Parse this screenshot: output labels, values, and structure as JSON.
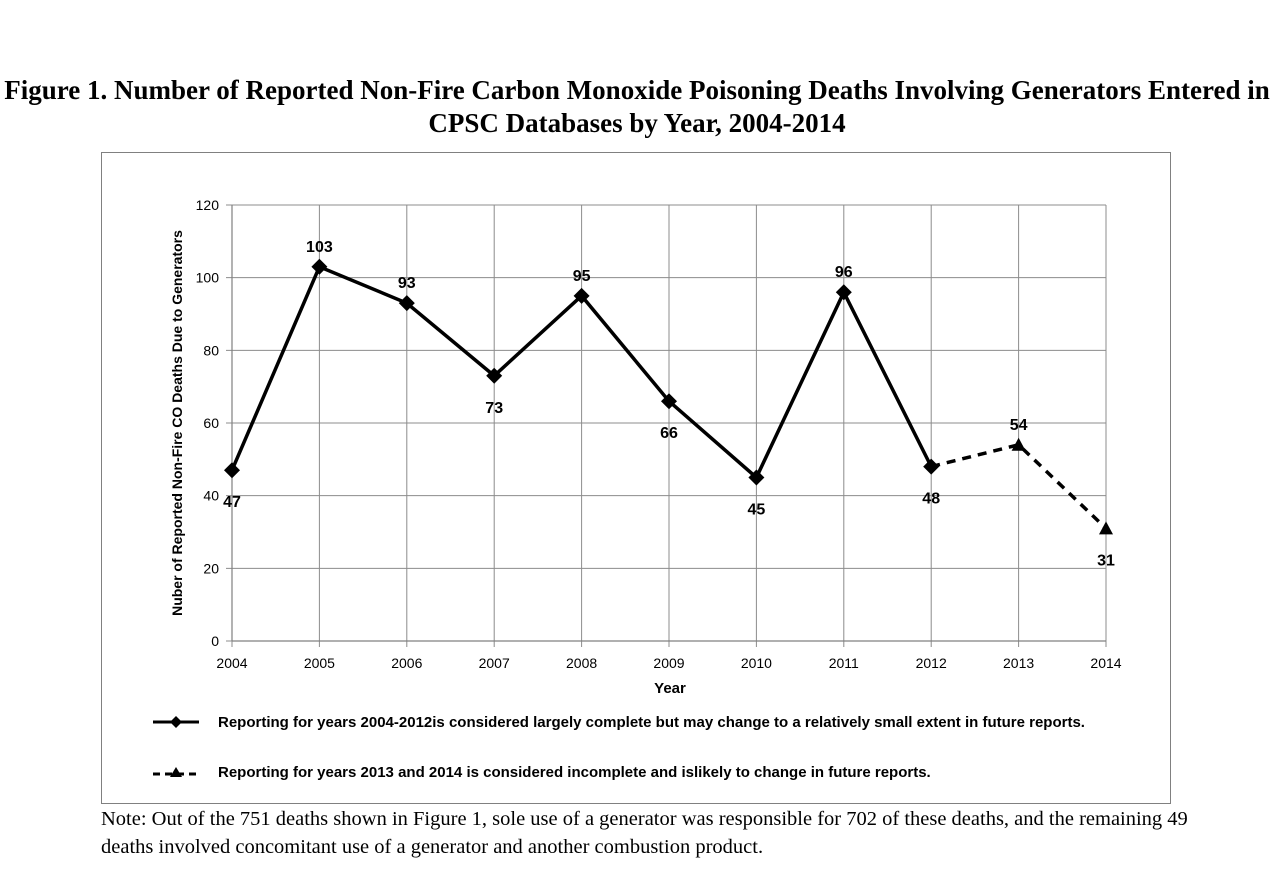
{
  "chart_data": {
    "type": "line",
    "title": "Figure 1.  Number of Reported Non-Fire Carbon Monoxide Poisoning Deaths Involving Generators Entered in CPSC Databases by Year, 2004-2014",
    "xlabel": "Year",
    "ylabel": "Nuber of Reported Non-Fire CO Deaths Due to Generators",
    "x": [
      "2004",
      "2005",
      "2006",
      "2007",
      "2008",
      "2009",
      "2010",
      "2011",
      "2012",
      "2013",
      "2014"
    ],
    "ylim": [
      0,
      120
    ],
    "yticks": [
      "0",
      "20",
      "40",
      "60",
      "80",
      "100",
      "120"
    ],
    "grid": true,
    "legend_position": "bottom",
    "series": [
      {
        "name": "Reporting for years 2004-2012is considered largely complete but may change to a relatively small extent in future reports.",
        "style": "solid",
        "marker": "diamond",
        "color": "#000000",
        "x": [
          "2004",
          "2005",
          "2006",
          "2007",
          "2008",
          "2009",
          "2010",
          "2011",
          "2012"
        ],
        "values": [
          47,
          103,
          93,
          73,
          95,
          66,
          45,
          96,
          48
        ]
      },
      {
        "name": "Reporting for years 2013 and 2014 is considered incomplete and islikely to change in future reports.",
        "style": "dashed",
        "marker": "triangle",
        "color": "#000000",
        "x": [
          "2012",
          "2013",
          "2014"
        ],
        "values": [
          48,
          54,
          31
        ]
      }
    ],
    "data_labels": [
      {
        "x": "2004",
        "text": "47",
        "position": "below"
      },
      {
        "x": "2005",
        "text": "103",
        "position": "above"
      },
      {
        "x": "2006",
        "text": "93",
        "position": "above"
      },
      {
        "x": "2007",
        "text": "73",
        "position": "below"
      },
      {
        "x": "2008",
        "text": "95",
        "position": "above"
      },
      {
        "x": "2009",
        "text": "66",
        "position": "below"
      },
      {
        "x": "2010",
        "text": "45",
        "position": "below"
      },
      {
        "x": "2011",
        "text": "96",
        "position": "above"
      },
      {
        "x": "2012",
        "text": "48",
        "position": "below"
      },
      {
        "x": "2013",
        "text": "54",
        "position": "above"
      },
      {
        "x": "2014",
        "text": "31",
        "position": "below"
      }
    ]
  },
  "note": "Note:  Out of the 751 deaths shown in Figure 1, sole use of a generator was responsible for 702 of these deaths, and the remaining 49 deaths involved concomitant use of a generator and another combustion product."
}
